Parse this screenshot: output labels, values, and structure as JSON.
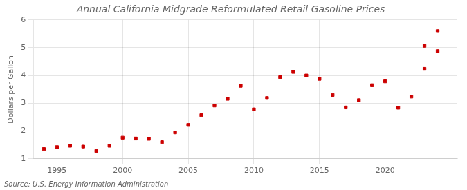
{
  "chart_data": {
    "type": "scatter",
    "title": "Annual California Midgrade Reformulated Retail Gasoline Prices",
    "ylabel": "Dollars per Gallon",
    "annotations": [
      "Source: U.S. Energy Information Administration"
    ],
    "series": [
      {
        "color": "#cc0000",
        "marker": "square",
        "x": [
          1994,
          1995,
          1996,
          1997,
          1998,
          1999,
          2000,
          2001,
          2002,
          2003,
          2004,
          2005,
          2006,
          2007,
          2008,
          2009,
          2010,
          2011,
          2012,
          2013,
          2014,
          2015,
          2016,
          2017,
          2018,
          2019,
          2020,
          2021,
          2022,
          2023,
          2024
        ],
        "values": [
          1.35,
          1.42,
          1.47,
          1.44,
          1.28,
          1.47,
          1.76,
          1.73,
          1.72,
          1.6,
          1.95,
          2.22,
          2.57,
          2.92,
          3.16,
          3.63,
          2.78,
          3.19,
          3.94,
          4.13,
          4.0,
          3.88,
          3.3,
          2.85,
          3.11,
          3.65,
          3.79,
          2.84,
          3.24,
          4.24,
          5.6
        ]
      },
      {
        "color": "#cc0000",
        "marker": "square",
        "x": [
          2023,
          2024
        ],
        "values": [
          5.07,
          4.88
        ]
      }
    ],
    "xlim": [
      1993.2,
      2025.5
    ],
    "xticks": [
      1995,
      2000,
      2005,
      2010,
      2015,
      2020
    ],
    "ylim": [
      1,
      6
    ],
    "yticks": [
      1,
      2,
      3,
      4,
      5,
      6
    ],
    "grid": true
  }
}
